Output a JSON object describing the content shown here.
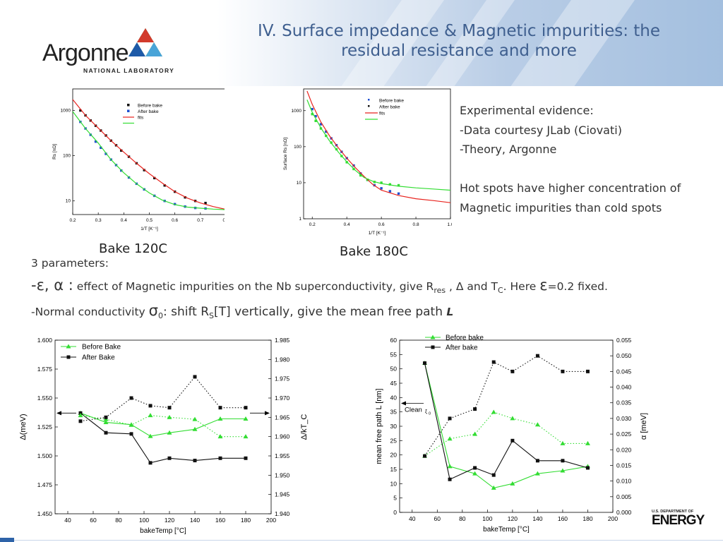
{
  "slide": {
    "title_line1": "IV. Surface impedance & Magnetic impurities: the",
    "title_line2": "residual resistance and more",
    "logo": {
      "word": "Argonne",
      "sub": "NATIONAL LABORATORY"
    },
    "right_text": {
      "line1": "Experimental evidence:",
      "line2": "-Data courtesy JLab (Ciovati)",
      "line3": "-Theory, Argonne",
      "line4": "Hot spots have higher concentration of",
      "line5": "Magnetic  impurities than cold spots"
    },
    "caption_left": "Bake 120C",
    "caption_right": "Bake 180C",
    "params_heading": "3 parameters:",
    "para1": {
      "lead": "-ε, α :",
      "t1": " effect of Magnetic impurities on the Nb superconductivity, give R",
      "sub_res": "res",
      "t2": " , Δ and T",
      "sub_c": "C",
      "t3": ". Here ",
      "eps": "ε",
      "t4": "=0.2 fixed."
    },
    "para2": {
      "t1": "-Normal conductivity ",
      "sigma": "σ",
      "sub0": "0",
      "t2": ": shift R",
      "subS": "S",
      "t3": "[T] vertically, give the mean free path ",
      "L": "L"
    },
    "doe": {
      "small": "U.S. DEPARTMENT OF",
      "big": "ENERGY"
    },
    "colors": {
      "title": "#3f5f8f",
      "red": "#e8231e",
      "green": "#33dd33",
      "blue": "#1f4fd0",
      "black": "#111111",
      "accent_blue": "#2e63a8"
    }
  },
  "chart_data": [
    {
      "id": "rs-120",
      "type": "scatter",
      "xlabel": "1/T [K⁻¹]",
      "ylabel": "Rs [nΩ]",
      "xlim": [
        0.2,
        0.8
      ],
      "ylim": [
        5,
        3000
      ],
      "log_y": true,
      "xticks": [
        "0.2",
        "0.3",
        "0.4",
        "0.5",
        "0.6",
        "0.7",
        "0.8"
      ],
      "yticks": [
        "10",
        "100",
        "1000"
      ],
      "legend": [
        "Before bake",
        "After bake",
        "fits",
        ""
      ],
      "series": [
        {
          "name": "Before bake",
          "style": "markers",
          "x": [
            0.23,
            0.25,
            0.27,
            0.29,
            0.31,
            0.33,
            0.35,
            0.37,
            0.39,
            0.42,
            0.45,
            0.48,
            0.52,
            0.56,
            0.6,
            0.64,
            0.68,
            0.72
          ],
          "y": [
            1000,
            780,
            600,
            460,
            360,
            280,
            215,
            170,
            130,
            95,
            68,
            48,
            32,
            22,
            16,
            12,
            10,
            9
          ]
        },
        {
          "name": "After bake",
          "style": "markers",
          "x": [
            0.23,
            0.25,
            0.27,
            0.29,
            0.31,
            0.33,
            0.35,
            0.37,
            0.39,
            0.42,
            0.45,
            0.48,
            0.52,
            0.56,
            0.6,
            0.64,
            0.68,
            0.72
          ],
          "y": [
            560,
            400,
            290,
            205,
            150,
            110,
            82,
            62,
            47,
            33,
            24,
            18,
            13,
            10,
            8.5,
            7.5,
            7,
            6.8
          ]
        },
        {
          "name": "fits",
          "style": "line",
          "x": [
            0.2,
            0.25,
            0.3,
            0.35,
            0.4,
            0.45,
            0.5,
            0.55,
            0.6,
            0.65,
            0.7,
            0.75,
            0.8
          ],
          "y": [
            1750,
            780,
            410,
            215,
            120,
            68,
            40,
            25,
            16,
            11.5,
            9,
            7.5,
            6.5
          ]
        },
        {
          "name": "",
          "style": "line",
          "x": [
            0.2,
            0.25,
            0.3,
            0.35,
            0.4,
            0.45,
            0.5,
            0.55,
            0.6,
            0.65,
            0.7,
            0.75,
            0.8
          ],
          "y": [
            950,
            400,
            190,
            82,
            42,
            24,
            15,
            10.5,
            8.3,
            7.3,
            6.9,
            6.6,
            6.4
          ]
        }
      ]
    },
    {
      "id": "rs-180",
      "type": "scatter",
      "xlabel": "1/T [K⁻¹]",
      "ylabel": "Surface Rs [nΩ]",
      "xlim": [
        0.15,
        1.0
      ],
      "ylim": [
        1,
        4000
      ],
      "log_y": true,
      "xticks": [
        "0.2",
        "0.4",
        "0.6",
        "0.8",
        "1.0"
      ],
      "yticks": [
        "1",
        "10",
        "100",
        "1000"
      ],
      "legend": [
        "Before bake",
        "After bake",
        "fits",
        ""
      ],
      "series": [
        {
          "name": "Before bake",
          "style": "markers",
          "x": [
            0.2,
            0.22,
            0.25,
            0.28,
            0.31,
            0.34,
            0.37,
            0.4,
            0.44,
            0.48,
            0.52,
            0.56,
            0.6,
            0.65,
            0.7
          ],
          "y": [
            1100,
            700,
            420,
            260,
            170,
            110,
            72,
            48,
            30,
            18,
            12,
            8.5,
            7,
            5.8,
            5
          ]
        },
        {
          "name": "After bake",
          "style": "markers",
          "x": [
            0.2,
            0.22,
            0.25,
            0.28,
            0.31,
            0.34,
            0.37,
            0.4,
            0.44,
            0.48,
            0.52,
            0.56,
            0.6,
            0.65,
            0.7
          ],
          "y": [
            800,
            520,
            320,
            200,
            130,
            85,
            55,
            37,
            24,
            16,
            12,
            10.5,
            10,
            9,
            8.5
          ]
        },
        {
          "name": "fits",
          "style": "line",
          "x": [
            0.17,
            0.2,
            0.25,
            0.3,
            0.35,
            0.4,
            0.45,
            0.5,
            0.55,
            0.6,
            0.7,
            0.8,
            0.9,
            1.0
          ],
          "y": [
            3500,
            1500,
            480,
            200,
            95,
            48,
            26,
            15,
            9,
            6.2,
            4.4,
            3.6,
            3.2,
            2.8
          ]
        },
        {
          "name": "",
          "style": "line",
          "x": [
            0.17,
            0.2,
            0.25,
            0.3,
            0.35,
            0.4,
            0.45,
            0.5,
            0.55,
            0.6,
            0.7,
            0.8,
            0.9,
            1.0
          ],
          "y": [
            2000,
            900,
            330,
            145,
            72,
            38,
            22,
            14,
            11,
            9.5,
            8,
            7.2,
            6.7,
            6.2
          ]
        }
      ]
    },
    {
      "id": "delta",
      "type": "line",
      "xlabel": "bakeTemp [°C]",
      "ylabel": "Δ(meV)",
      "y2label": "Δ/kT_C",
      "xlim": [
        30,
        200
      ],
      "ylim": [
        1.45,
        1.6
      ],
      "y2lim": [
        1.94,
        1.985
      ],
      "xticks": [
        "40",
        "60",
        "80",
        "100",
        "120",
        "140",
        "160",
        "180",
        "200"
      ],
      "yticks": [
        "1.450",
        "1.475",
        "1.500",
        "1.525",
        "1.550",
        "1.575",
        "1.600"
      ],
      "y2ticks": [
        "1.940",
        "1.945",
        "1.950",
        "1.955",
        "1.960",
        "1.965",
        "1.970",
        "1.975",
        "1.980",
        "1.985"
      ],
      "legend": [
        "Before Bake",
        "After Bake"
      ],
      "x": [
        50,
        70,
        90,
        105,
        120,
        140,
        160,
        180
      ],
      "series": [
        {
          "name": "Before Bake",
          "axis": "left",
          "style": "solid",
          "values": [
            1.537,
            1.529,
            1.527,
            1.517,
            1.52,
            1.523,
            1.532,
            1.532
          ]
        },
        {
          "name": "After Bake",
          "axis": "left",
          "style": "solid",
          "values": [
            1.537,
            1.52,
            1.519,
            1.494,
            1.498,
            1.496,
            1.498,
            1.498
          ]
        },
        {
          "name": "",
          "axis": "right",
          "style": "dotted-green",
          "values": [
            1.9655,
            1.9645,
            1.963,
            1.9655,
            1.965,
            1.9645,
            1.96,
            1.96
          ]
        },
        {
          "name": "",
          "axis": "right",
          "style": "dotted-black",
          "values": [
            1.964,
            1.965,
            1.97,
            1.968,
            1.9675,
            1.9755,
            1.9675,
            1.9675
          ]
        }
      ]
    },
    {
      "id": "mfp",
      "type": "line",
      "xlabel": "bakeTemp [°C]",
      "ylabel": "mean free path L [nm]",
      "y2label": "α [meV]",
      "xlim": [
        30,
        200
      ],
      "ylim": [
        0,
        60
      ],
      "y2lim": [
        0,
        0.055
      ],
      "xticks": [
        "40",
        "60",
        "80",
        "100",
        "120",
        "140",
        "160",
        "180",
        "200"
      ],
      "yticks": [
        "0",
        "5",
        "10",
        "15",
        "20",
        "25",
        "30",
        "35",
        "40",
        "45",
        "50",
        "55",
        "60"
      ],
      "y2ticks": [
        "0.000",
        "0.005",
        "0.010",
        "0.015",
        "0.020",
        "0.025",
        "0.030",
        "0.035",
        "0.040",
        "0.045",
        "0.050",
        "0.055"
      ],
      "legend": [
        "Before bake",
        "After bake"
      ],
      "annotation": {
        "text": "Clean ",
        "sub": "ξ",
        "subsub": "0",
        "value": 38
      },
      "x": [
        50,
        70,
        90,
        105,
        120,
        140,
        160,
        180
      ],
      "series": [
        {
          "name": "Before bake",
          "axis": "left",
          "style": "solid",
          "values": [
            52,
            16,
            13.5,
            8.5,
            10,
            13.5,
            14.5,
            16
          ]
        },
        {
          "name": "After bake",
          "axis": "left",
          "style": "solid",
          "values": [
            52,
            11.5,
            15.5,
            13,
            25,
            18,
            18,
            15.5
          ]
        },
        {
          "name": "",
          "axis": "right",
          "style": "dotted-green",
          "values": [
            0.018,
            0.0235,
            0.025,
            0.032,
            0.03,
            0.028,
            0.022,
            0.022
          ]
        },
        {
          "name": "",
          "axis": "right",
          "style": "dotted-black",
          "values": [
            0.018,
            0.03,
            0.033,
            0.048,
            0.045,
            0.05,
            0.045,
            0.045
          ]
        }
      ]
    }
  ]
}
